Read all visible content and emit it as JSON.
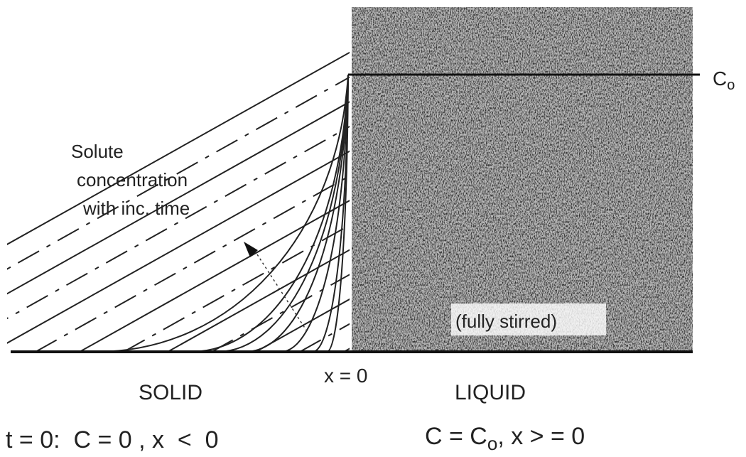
{
  "diagram": {
    "level_label": {
      "symbol": "C",
      "subscript": "o"
    },
    "curve_label": [
      "Solute",
      "concentration",
      "with inc. time"
    ],
    "liquid_note": "(fully stirred)",
    "interface": "x = 0",
    "solid": "SOLID",
    "liquid": "LIQUID",
    "solid_condition": "t = 0:  C = 0 , x  <  0",
    "liquid_condition": {
      "left": "C = C",
      "subscript": "o",
      "right": ", x > = 0"
    }
  }
}
